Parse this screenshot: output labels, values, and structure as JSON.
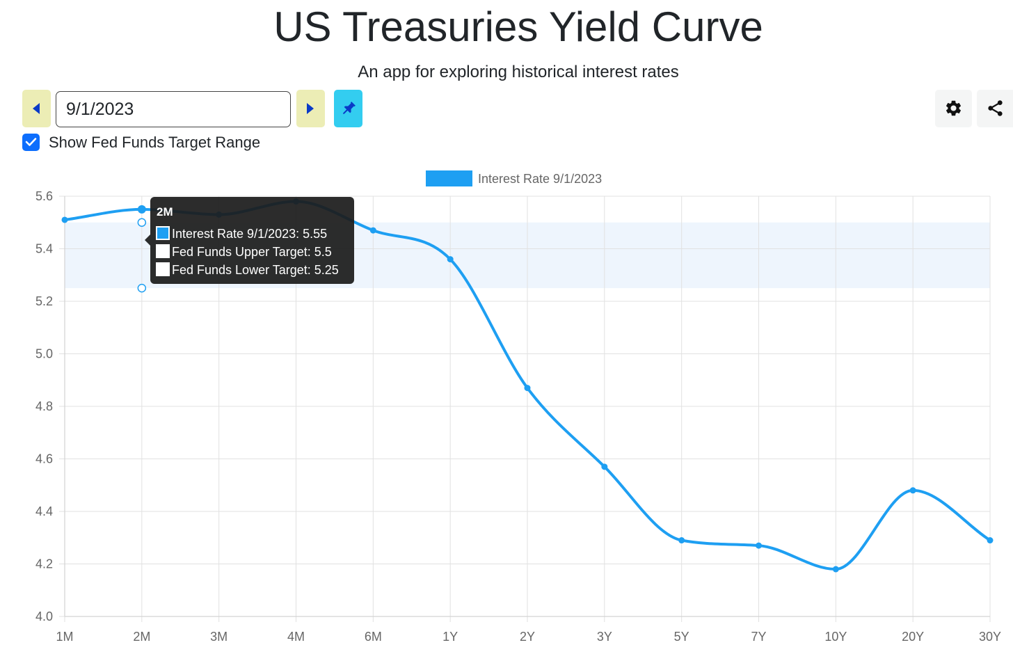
{
  "header": {
    "title": "US Treasuries Yield Curve",
    "subtitle": "An app for exploring historical interest rates"
  },
  "controls": {
    "date_value": "9/1/2023",
    "prev_icon": "caret-left-icon",
    "next_icon": "caret-right-icon",
    "pin_icon": "pin-icon",
    "settings_icon": "gear-icon",
    "share_icon": "share-icon",
    "show_fed_funds_label": "Show Fed Funds Target Range",
    "show_fed_funds_checked": true
  },
  "colors": {
    "series": "#1e9ff2",
    "fed_band": "#eef5fd",
    "nav_button": "#ecedb5",
    "pin_button": "#33cdf0",
    "checkbox": "#0d6efd",
    "tooltip_bg": "#1c1c1c"
  },
  "chart_data": {
    "type": "line",
    "title": "",
    "xlabel": "",
    "ylabel": "",
    "categories": [
      "1M",
      "2M",
      "3M",
      "4M",
      "6M",
      "1Y",
      "2Y",
      "3Y",
      "5Y",
      "7Y",
      "10Y",
      "20Y",
      "30Y"
    ],
    "series": [
      {
        "name": "Interest Rate 9/1/2023",
        "values": [
          5.51,
          5.55,
          5.53,
          5.58,
          5.47,
          5.36,
          4.87,
          4.57,
          4.29,
          4.27,
          4.18,
          4.48,
          4.29
        ]
      }
    ],
    "fed_funds_target": {
      "upper": 5.5,
      "lower": 5.25
    },
    "ylim": [
      4.0,
      5.6
    ],
    "yticks": [
      "5.6",
      "5.4",
      "5.2",
      "5.0",
      "4.8",
      "4.6",
      "4.4",
      "4.2",
      "4.0"
    ],
    "grid": true,
    "legend_position": "top",
    "tooltip": {
      "title": "2M",
      "lines": [
        "Interest Rate 9/1/2023: 5.55",
        "Fed Funds Upper Target: 5.5",
        "Fed Funds Lower Target: 5.25"
      ]
    }
  }
}
